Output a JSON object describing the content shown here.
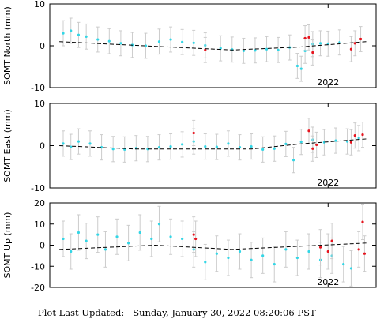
{
  "footer": {
    "label": "Plot Last Updated:",
    "timestamp": "Sunday, January 30, 2022 08:20:06 PST"
  },
  "colors": {
    "point": "#33d6e6",
    "recent_point": "#e6141e",
    "errorbar": "#cccccc",
    "model_line": "#000000",
    "axes": "#000000"
  },
  "chart_data": [
    {
      "type": "scatter",
      "ylabel": "SOMT North (mm)",
      "ylim": [
        -10,
        10
      ],
      "yticks": [
        -10,
        0,
        10
      ],
      "x_tick_labels": [
        {
          "label": "2022",
          "x": 2022.0
        }
      ],
      "xlim": [
        2020.55,
        2022.25
      ],
      "grid": false,
      "series": [
        {
          "role": "daily",
          "color": "cyan",
          "points": [
            [
              2020.62,
              3.0
            ],
            [
              2020.66,
              3.6
            ],
            [
              2020.7,
              2.6
            ],
            [
              2020.74,
              2.2
            ],
            [
              2020.8,
              1.5
            ],
            [
              2020.86,
              1.1
            ],
            [
              2020.92,
              0.6
            ],
            [
              2020.98,
              0.2
            ],
            [
              2021.05,
              0.0
            ],
            [
              2021.12,
              1.0
            ],
            [
              2021.18,
              1.5
            ],
            [
              2021.24,
              0.9
            ],
            [
              2021.3,
              0.7
            ],
            [
              2021.36,
              0.1
            ],
            [
              2021.44,
              -0.6
            ],
            [
              2021.5,
              -0.9
            ],
            [
              2021.56,
              -1.2
            ],
            [
              2021.62,
              -1.1
            ],
            [
              2021.68,
              -0.8
            ],
            [
              2021.74,
              -1.0
            ],
            [
              2021.8,
              -0.4
            ],
            [
              2021.84,
              -4.8
            ],
            [
              2021.86,
              -5.5
            ],
            [
              2021.88,
              -1.2
            ],
            [
              2021.92,
              0.4
            ],
            [
              2021.96,
              0.6
            ],
            [
              2022.0,
              0.5
            ],
            [
              2022.06,
              0.8
            ]
          ]
        },
        {
          "role": "recent",
          "color": "red",
          "points": [
            [
              2021.36,
              -1.0
            ],
            [
              2021.88,
              1.8
            ],
            [
              2021.9,
              2.0
            ],
            [
              2021.92,
              -1.6
            ],
            [
              2022.12,
              -0.8
            ],
            [
              2022.14,
              0.6
            ],
            [
              2022.17,
              1.6
            ]
          ]
        }
      ],
      "model": [
        [
          2020.6,
          1.0
        ],
        [
          2021.0,
          0.1
        ],
        [
          2021.5,
          -1.0
        ],
        [
          2021.85,
          -0.3
        ],
        [
          2022.2,
          1.0
        ]
      ]
    },
    {
      "type": "scatter",
      "ylabel": "SOMT East (mm)",
      "ylim": [
        -10,
        10
      ],
      "yticks": [
        -10,
        0,
        10
      ],
      "x_tick_labels": [
        {
          "label": "2022",
          "x": 2022.0
        }
      ],
      "xlim": [
        2020.55,
        2022.25
      ],
      "grid": false,
      "series": [
        {
          "role": "daily",
          "color": "cyan",
          "points": [
            [
              2020.62,
              0.5
            ],
            [
              2020.66,
              -0.3
            ],
            [
              2020.7,
              1.0
            ],
            [
              2020.76,
              0.5
            ],
            [
              2020.82,
              -0.4
            ],
            [
              2020.88,
              -0.8
            ],
            [
              2020.94,
              -0.9
            ],
            [
              2021.0,
              -0.6
            ],
            [
              2021.06,
              -0.8
            ],
            [
              2021.12,
              -0.4
            ],
            [
              2021.18,
              -0.2
            ],
            [
              2021.24,
              0.3
            ],
            [
              2021.3,
              1.0
            ],
            [
              2021.36,
              -0.2
            ],
            [
              2021.42,
              -0.3
            ],
            [
              2021.48,
              0.5
            ],
            [
              2021.54,
              -0.4
            ],
            [
              2021.6,
              -0.2
            ],
            [
              2021.66,
              -0.9
            ],
            [
              2021.72,
              -0.7
            ],
            [
              2021.78,
              0.4
            ],
            [
              2021.82,
              -3.4
            ],
            [
              2021.86,
              0.9
            ],
            [
              2021.92,
              1.4
            ],
            [
              2021.98,
              0.8
            ],
            [
              2022.04,
              1.2
            ],
            [
              2022.1,
              1.0
            ],
            [
              2022.16,
              1.8
            ]
          ]
        },
        {
          "role": "recent",
          "color": "red",
          "points": [
            [
              2021.3,
              3.0
            ],
            [
              2021.9,
              3.5
            ],
            [
              2021.92,
              -0.7
            ],
            [
              2021.94,
              0.2
            ],
            [
              2022.12,
              0.8
            ],
            [
              2022.14,
              2.4
            ],
            [
              2022.18,
              2.6
            ]
          ]
        }
      ],
      "model": [
        [
          2020.6,
          0.0
        ],
        [
          2021.0,
          -0.8
        ],
        [
          2021.6,
          -0.8
        ],
        [
          2021.85,
          0.4
        ],
        [
          2022.2,
          1.6
        ]
      ]
    },
    {
      "type": "scatter",
      "ylabel": "SOMT Up (mm)",
      "ylim": [
        -20,
        20
      ],
      "yticks": [
        -20,
        -10,
        0,
        10,
        20
      ],
      "x_tick_labels": [
        {
          "label": "2022",
          "x": 2022.0
        }
      ],
      "xlim": [
        2020.55,
        2022.25
      ],
      "grid": false,
      "series": [
        {
          "role": "daily",
          "color": "cyan",
          "points": [
            [
              2020.62,
              3.0
            ],
            [
              2020.66,
              -3.0
            ],
            [
              2020.7,
              6.0
            ],
            [
              2020.74,
              2.0
            ],
            [
              2020.8,
              5.0
            ],
            [
              2020.84,
              -2.0
            ],
            [
              2020.9,
              4.0
            ],
            [
              2020.96,
              1.0
            ],
            [
              2021.02,
              6.0
            ],
            [
              2021.08,
              3.0
            ],
            [
              2021.12,
              10.0
            ],
            [
              2021.18,
              4.0
            ],
            [
              2021.24,
              3.0
            ],
            [
              2021.3,
              -2.0
            ],
            [
              2021.36,
              -8.0
            ],
            [
              2021.42,
              -4.0
            ],
            [
              2021.48,
              -6.0
            ],
            [
              2021.54,
              -3.0
            ],
            [
              2021.6,
              -7.0
            ],
            [
              2021.66,
              -5.0
            ],
            [
              2021.72,
              -9.0
            ],
            [
              2021.78,
              -2.0
            ],
            [
              2021.84,
              -6.0
            ],
            [
              2021.9,
              -3.0
            ],
            [
              2021.96,
              -7.0
            ],
            [
              2022.02,
              -5.0
            ],
            [
              2022.08,
              -9.0
            ],
            [
              2022.12,
              -11.0
            ]
          ]
        },
        {
          "role": "recent",
          "color": "red",
          "points": [
            [
              2021.3,
              5.0
            ],
            [
              2021.31,
              3.0
            ],
            [
              2021.96,
              -1.0
            ],
            [
              2022.0,
              -3.0
            ],
            [
              2022.02,
              2.0
            ],
            [
              2022.16,
              -2.0
            ],
            [
              2022.18,
              11.0
            ],
            [
              2022.19,
              -4.0
            ]
          ]
        }
      ],
      "model": [
        [
          2020.6,
          -2.0
        ],
        [
          2021.1,
          0.0
        ],
        [
          2021.5,
          -2.0
        ],
        [
          2022.2,
          1.0
        ]
      ]
    }
  ]
}
